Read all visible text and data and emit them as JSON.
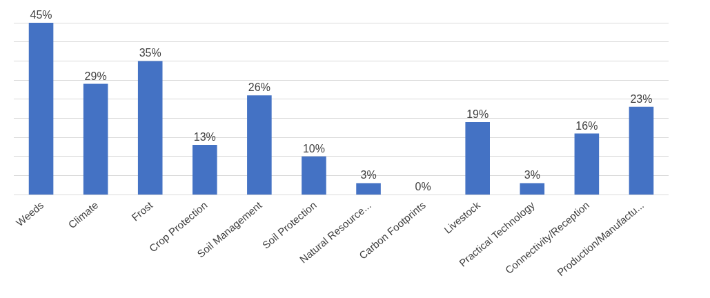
{
  "chart_data": {
    "type": "bar",
    "categories": [
      "Weeds",
      "Climate",
      "Frost",
      "Crop Protection",
      "Soil Management",
      "Soil Protection",
      "Natural Resource...",
      "Carbon Footprints",
      "Livestock",
      "Practical Technology",
      "Connectivity/Reception",
      "Production/Manufactu..."
    ],
    "values": [
      45,
      29,
      35,
      13,
      26,
      10,
      3,
      0,
      19,
      3,
      16,
      23
    ],
    "value_labels": [
      "45%",
      "29%",
      "35%",
      "13%",
      "26%",
      "10%",
      "3%",
      "0%",
      "19%",
      "3%",
      "16%",
      "23%"
    ],
    "color": "#4472c4",
    "yticks": [
      {
        "value": 0,
        "label": null
      },
      {
        "value": 5,
        "label": null
      },
      {
        "value": 10,
        "label": null
      },
      {
        "value": 15,
        "label": null
      },
      {
        "value": 20,
        "label": null
      },
      {
        "value": 25,
        "label": null
      },
      {
        "value": 30,
        "label": null
      },
      {
        "value": 35,
        "label": null
      },
      {
        "value": 40,
        "label": null
      },
      {
        "value": 45,
        "label": null
      }
    ],
    "grid": "y",
    "tick_labels": "x",
    "legend": false
  }
}
